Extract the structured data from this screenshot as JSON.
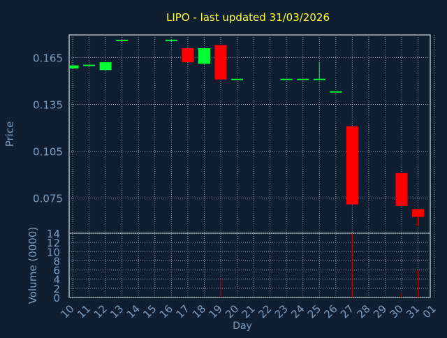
{
  "colors": {
    "background": "#0f1e30",
    "title": "#ffff33",
    "axis_text": "#7f9fc0",
    "frame": "#ffffff",
    "up": "#00ff33",
    "down": "#ff0000",
    "volume": "#cc0000"
  },
  "chart_data": {
    "type": "candlestick",
    "title": "LIPO - last updated 31/03/2026",
    "xlabel": "Day",
    "ylabel": "Price",
    "volume_ylabel": "Volume (0000)",
    "grid": true,
    "x_ticks": [
      "10",
      "11",
      "12",
      "13",
      "14",
      "15",
      "16",
      "17",
      "18",
      "19",
      "20",
      "21",
      "22",
      "23",
      "24",
      "25",
      "26",
      "27",
      "28",
      "29",
      "30",
      "31",
      "01"
    ],
    "price_ticks": [
      "0.165",
      "0.135",
      "0.105",
      "0.075"
    ],
    "price_ylim": [
      0.0525,
      0.1795
    ],
    "volume_ticks": [
      "0",
      "2",
      "4",
      "6",
      "8",
      "10",
      "12",
      "14"
    ],
    "volume_ylim": [
      0,
      14
    ],
    "candles": [
      {
        "day": "10",
        "open": 0.158,
        "close": 0.16,
        "high": 0.16,
        "low": 0.158,
        "volume": 0
      },
      {
        "day": "11",
        "open": 0.16,
        "close": 0.16,
        "high": 0.16,
        "low": 0.16,
        "volume": 0
      },
      {
        "day": "12",
        "open": 0.157,
        "close": 0.162,
        "high": 0.162,
        "low": 0.157,
        "volume": 0
      },
      {
        "day": "13",
        "open": 0.176,
        "close": 0.176,
        "high": 0.176,
        "low": 0.176,
        "volume": 0
      },
      {
        "day": "16",
        "open": 0.176,
        "close": 0.176,
        "high": 0.176,
        "low": 0.176,
        "volume": 0
      },
      {
        "day": "17",
        "open": 0.171,
        "close": 0.162,
        "high": 0.171,
        "low": 0.162,
        "volume": 0
      },
      {
        "day": "18",
        "open": 0.161,
        "close": 0.171,
        "high": 0.171,
        "low": 0.161,
        "volume": 0
      },
      {
        "day": "19",
        "open": 0.173,
        "close": 0.151,
        "high": 0.173,
        "low": 0.151,
        "volume": 4.2
      },
      {
        "day": "20",
        "open": 0.151,
        "close": 0.151,
        "high": 0.151,
        "low": 0.151,
        "volume": 0
      },
      {
        "day": "23",
        "open": 0.151,
        "close": 0.151,
        "high": 0.151,
        "low": 0.151,
        "volume": 0
      },
      {
        "day": "24",
        "open": 0.151,
        "close": 0.151,
        "high": 0.151,
        "low": 0.151,
        "volume": 0
      },
      {
        "day": "25",
        "open": 0.151,
        "close": 0.151,
        "high": 0.162,
        "low": 0.151,
        "volume": 0
      },
      {
        "day": "26",
        "open": 0.143,
        "close": 0.143,
        "high": 0.143,
        "low": 0.143,
        "volume": 0
      },
      {
        "day": "27",
        "open": 0.121,
        "close": 0.071,
        "high": 0.121,
        "low": 0.071,
        "volume": 14
      },
      {
        "day": "30",
        "open": 0.091,
        "close": 0.07,
        "high": 0.091,
        "low": 0.07,
        "volume": 1
      },
      {
        "day": "31",
        "open": 0.068,
        "close": 0.063,
        "high": 0.068,
        "low": 0.057,
        "volume": 6
      }
    ]
  }
}
